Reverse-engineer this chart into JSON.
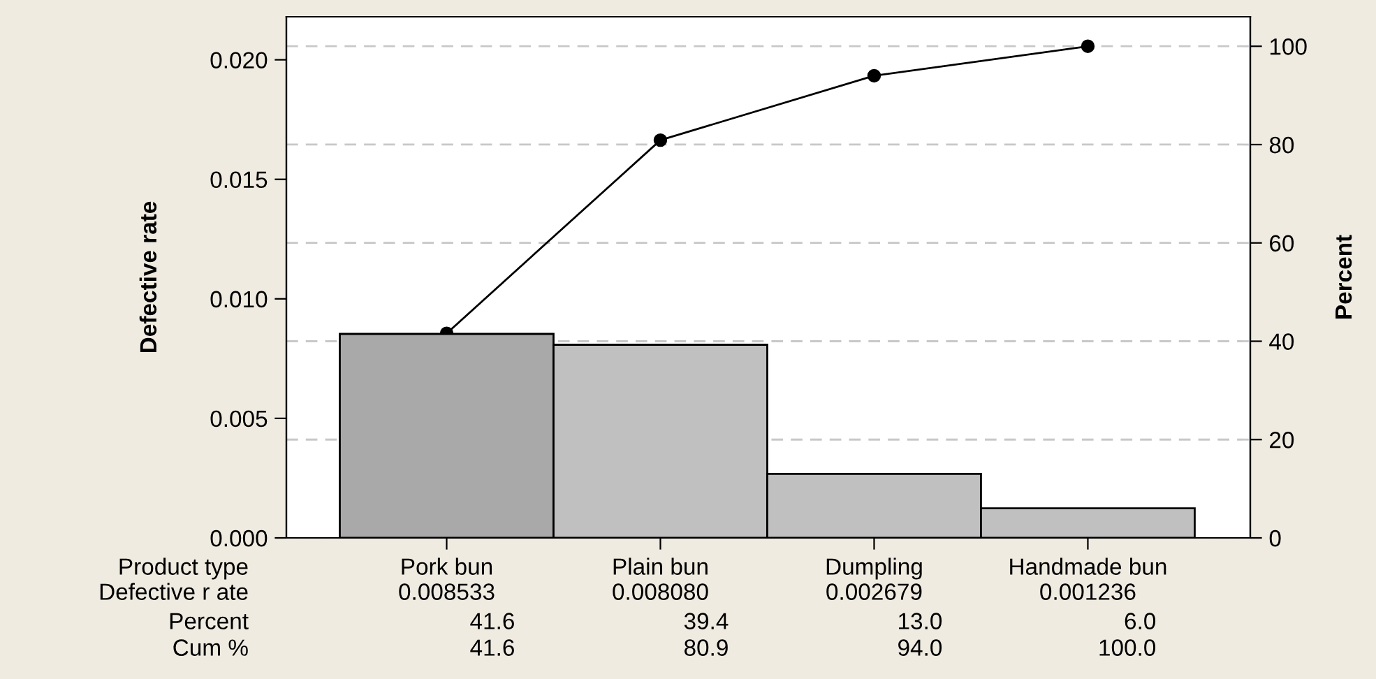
{
  "chart_data": {
    "type": "bar",
    "ylabel": "Defective rate",
    "y2label": "Percent",
    "xlabel": "Product type",
    "categories": [
      "Pork bun",
      "Plain bun",
      "Dumpling",
      "Handmade bun"
    ],
    "series": [
      {
        "colors": [
          "#a9a9a9",
          "#c0c0c0",
          "#c0c0c0",
          "#c0c0c0"
        ],
        "values": [
          0.008533,
          0.00808,
          0.002679,
          0.001236
        ],
        "value_labels": [
          "0.008533",
          "0.008080",
          "0.002679",
          "0.001236"
        ]
      },
      {
        "type": "line",
        "axis": "y2",
        "color": "#000000",
        "values": [
          41.6,
          80.9,
          94.0,
          100.0
        ],
        "value_labels": [
          "41.6",
          "80.9",
          "94.0",
          "100.0"
        ]
      }
    ],
    "ylim": [
      0,
      0.0218
    ],
    "yticks": [
      {
        "value": 0,
        "label": "0.000"
      },
      {
        "value": 0.005,
        "label": "0.005"
      },
      {
        "value": 0.01,
        "label": "0.010"
      },
      {
        "value": 0.015,
        "label": "0.015"
      },
      {
        "value": 0.02,
        "label": "0.020"
      }
    ],
    "y2lim": [
      0,
      106
    ],
    "y2ticks": [
      0,
      20,
      40,
      60,
      80,
      100
    ],
    "annotations": [
      "Defective r ate",
      "Percent",
      "Cum %",
      "41.6",
      "39.4",
      "13.0",
      "6.0"
    ],
    "grid": "y",
    "marker": "circle",
    "line_style": "solid",
    "legend": false
  }
}
